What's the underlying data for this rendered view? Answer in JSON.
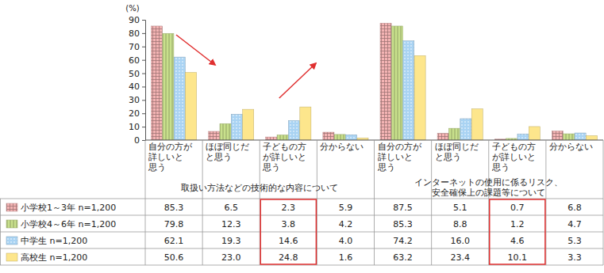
{
  "chart_data": {
    "type": "bar",
    "y_label": "(%)",
    "categories": [
      "自分の方が\n詳しいと\n思う",
      "ほぼ同じだ\nと思う",
      "子どもの方\nが詳しいと\n思う",
      "分からない",
      "自分の方が\n詳しいと\n思う",
      "ほぼ同じだ\nと思う",
      "子どもの方\nが詳しいと\n思う",
      "分からない"
    ],
    "groups": [
      "取扱い方法などの技術的な内容について",
      "インターネットの使用に係るリスク、\n安全確保上の課題等について"
    ],
    "series": [
      {
        "name": "小学校1～3年 n=1,200",
        "color": "#f4b4b4",
        "values": [
          85.3,
          6.5,
          2.3,
          5.9,
          87.5,
          5.1,
          0.7,
          6.8
        ],
        "value_labels": [
          "85.3",
          "6.5",
          "2.3",
          "5.9",
          "87.5",
          "5.1",
          "0.7",
          "6.8"
        ]
      },
      {
        "name": "小学校4～6年 n=1,200",
        "color": "#c8e08c",
        "values": [
          79.8,
          12.3,
          3.8,
          4.2,
          85.3,
          8.8,
          1.2,
          4.7
        ],
        "value_labels": [
          "79.8",
          "12.3",
          "3.8",
          "4.2",
          "85.3",
          "8.8",
          "1.2",
          "4.7"
        ]
      },
      {
        "name": "中学生 n=1,200",
        "color": "#a9d3f3",
        "values": [
          62.1,
          19.3,
          14.6,
          4.0,
          74.2,
          16.0,
          4.6,
          5.3
        ],
        "value_labels": [
          "62.1",
          "19.3",
          "14.6",
          "4.0",
          "74.2",
          "16.0",
          "4.6",
          "5.3"
        ]
      },
      {
        "name": "高校生 n=1,200",
        "color": "#fde68c",
        "values": [
          50.6,
          23.0,
          24.8,
          1.6,
          63.2,
          23.4,
          10.1,
          3.3
        ],
        "value_labels": [
          "50.6",
          "23.0",
          "24.8",
          "1.6",
          "63.2",
          "23.4",
          "10.1",
          "3.3"
        ]
      }
    ],
    "ylim": [
      0,
      90
    ],
    "yticks": [
      0,
      10,
      20,
      30,
      40,
      50,
      60,
      70,
      80,
      90
    ],
    "grid": false
  }
}
